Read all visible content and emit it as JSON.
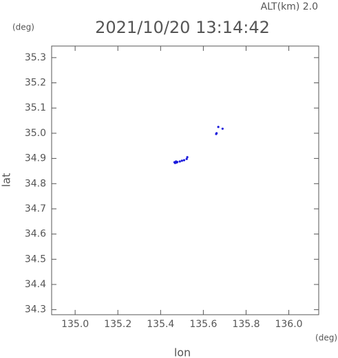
{
  "chart_data": {
    "type": "scatter",
    "title": "2021/10/20 13:14:42",
    "subtitle": "ALT(km) 2.0",
    "x_label": "lon",
    "y_label": "lat",
    "x_unit": "(deg)",
    "y_unit": "(deg)",
    "x": [
      135.465,
      135.468,
      135.472,
      135.475,
      135.478,
      135.49,
      135.5,
      135.51,
      135.522,
      135.525,
      135.66,
      135.662,
      135.67,
      135.69
    ],
    "values": [
      34.885,
      34.882,
      34.888,
      34.884,
      34.886,
      34.888,
      34.891,
      34.893,
      34.898,
      34.905,
      34.997,
      35.0,
      35.025,
      35.018
    ],
    "color": "#1a1adc",
    "xlim": [
      134.89,
      136.14
    ],
    "ylim": [
      34.28,
      35.346
    ],
    "xticks": [
      {
        "value": 135.0,
        "label": "135.0"
      },
      135.2,
      135.4,
      135.6,
      135.8,
      {
        "value": 136.0,
        "label": "136.0"
      }
    ],
    "yticks": [
      34.3,
      34.4,
      34.5,
      34.6,
      34.7,
      34.8,
      34.9,
      {
        "value": 35.0,
        "label": "35.0"
      },
      35.1,
      35.2,
      35.3
    ]
  }
}
